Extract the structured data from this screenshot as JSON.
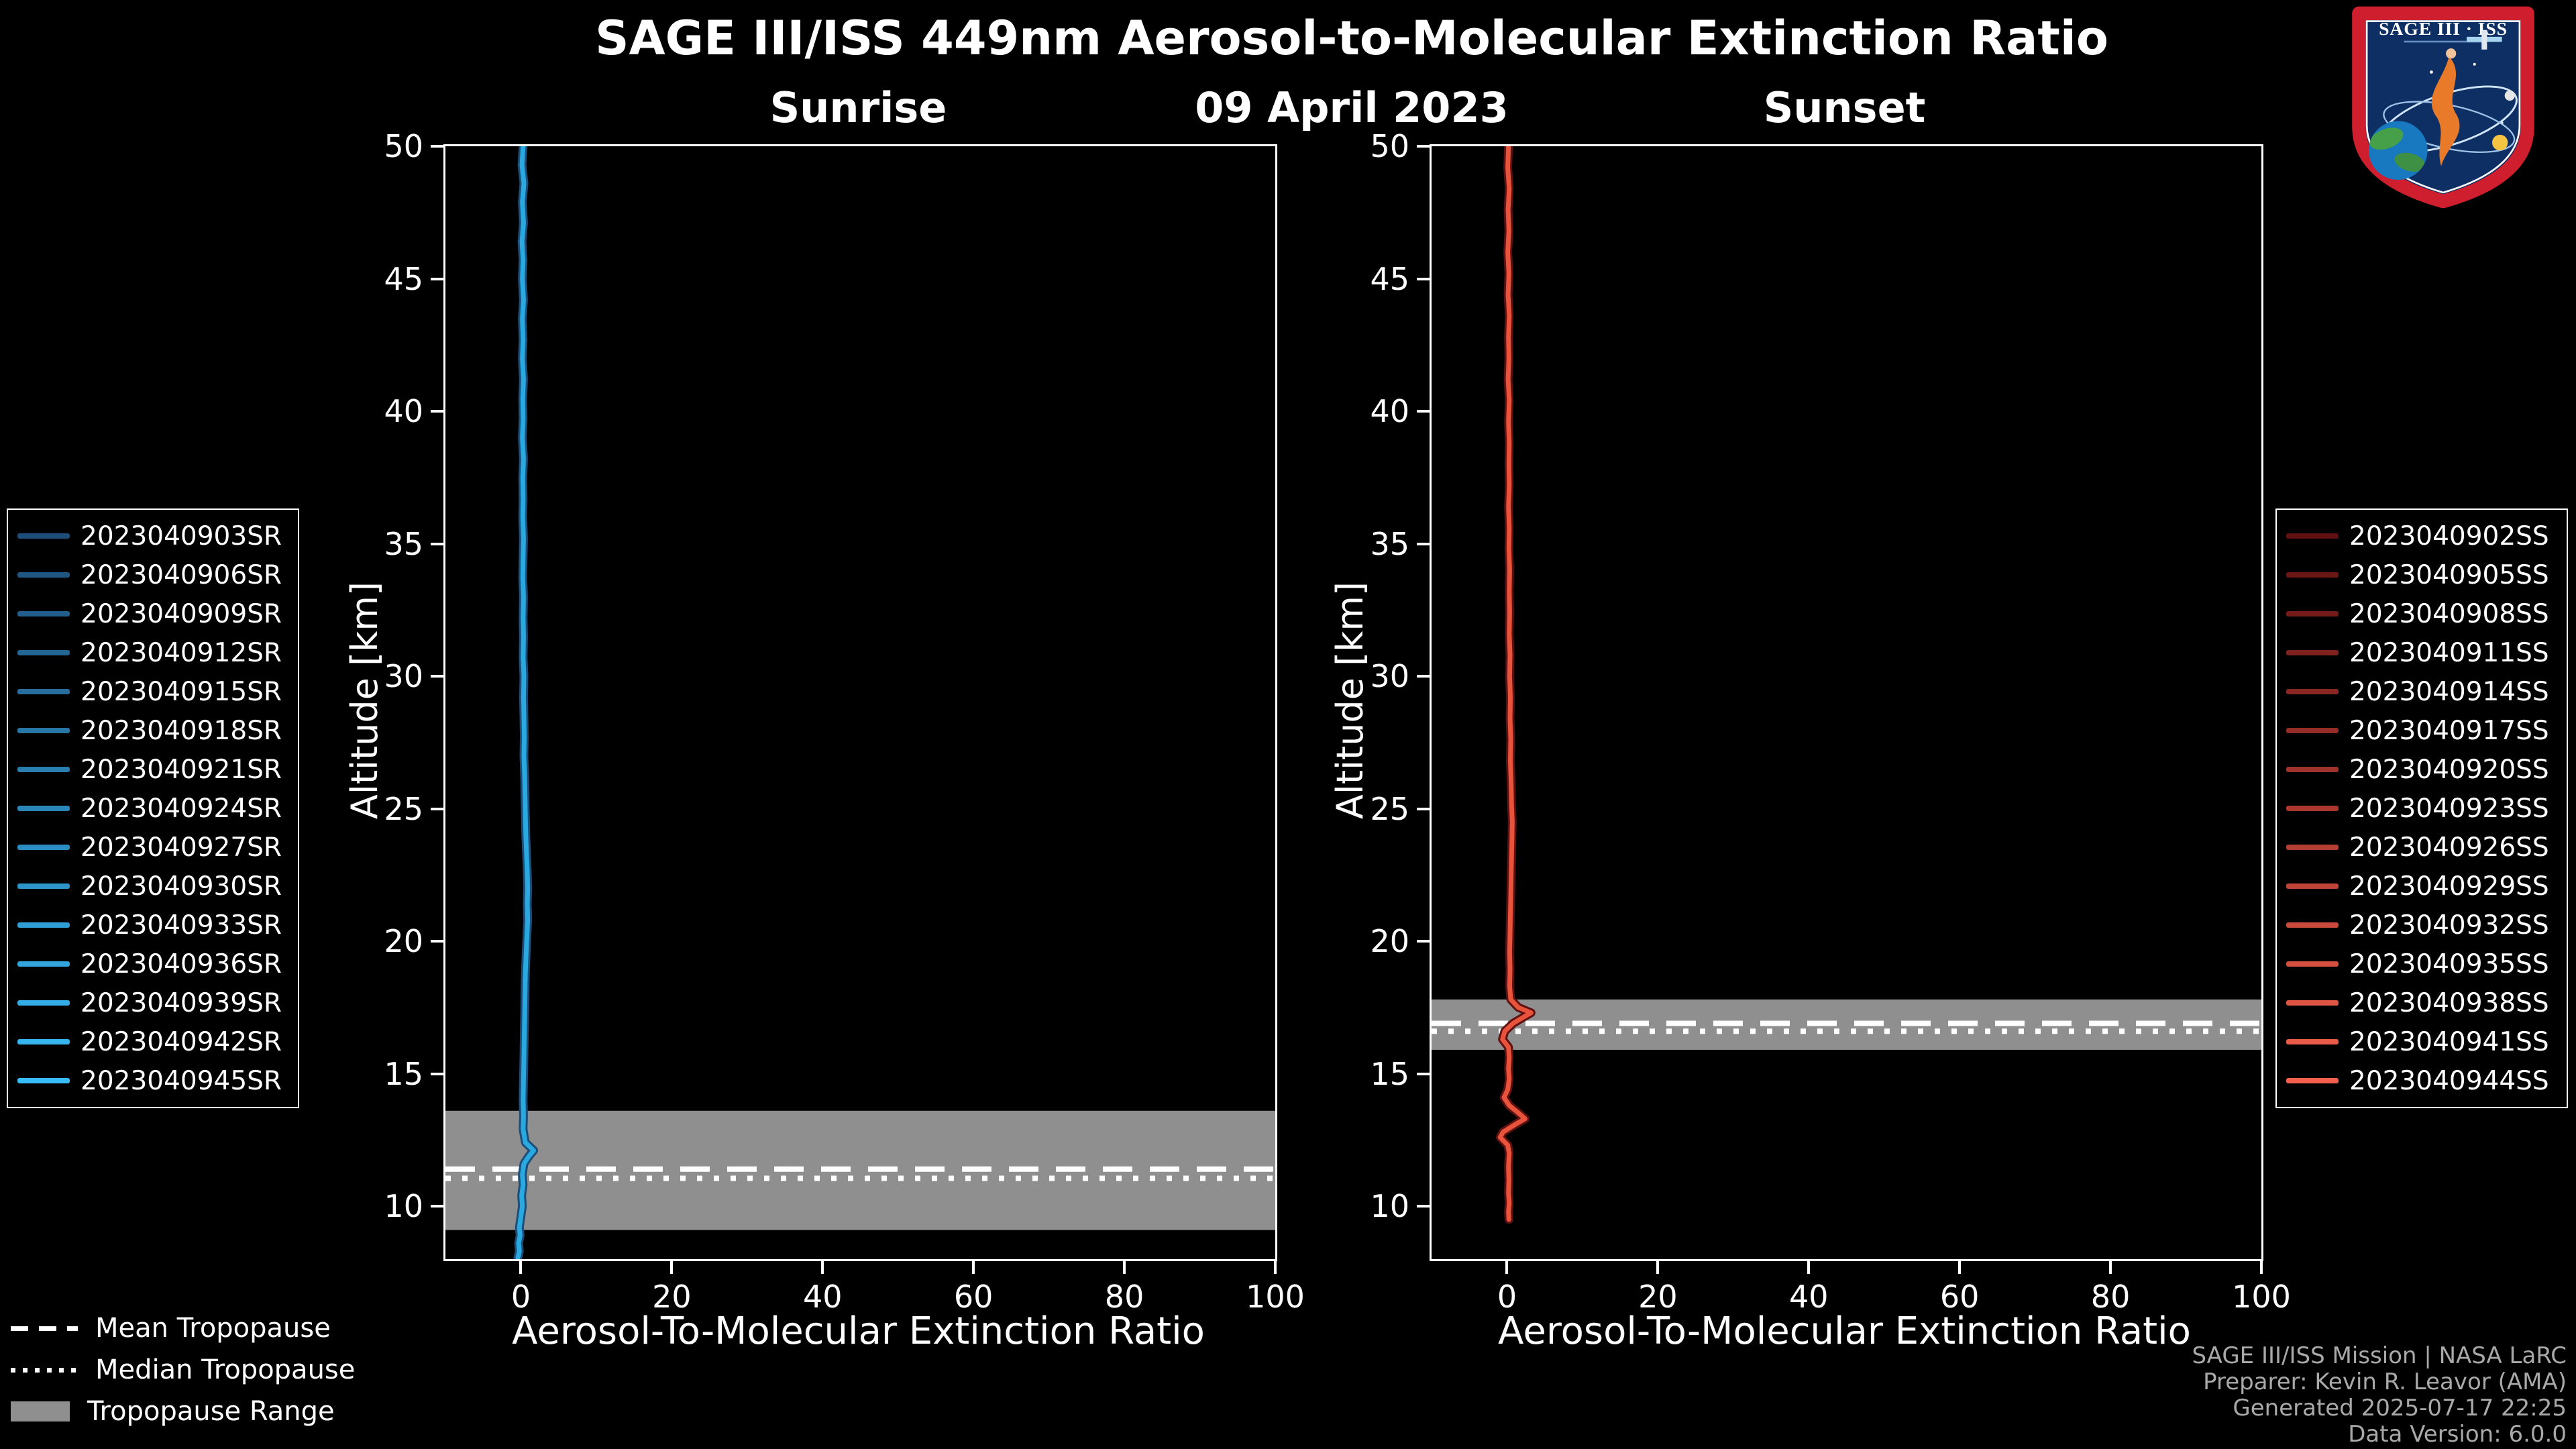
{
  "header": {
    "title": "SAGE III/ISS 449nm Aerosol-to-Molecular Extinction Ratio",
    "date": "09 April 2023"
  },
  "logo": {
    "text": "SAGE III · ISS"
  },
  "chart_data": [
    {
      "type": "line",
      "panel": "sunrise",
      "title": "Sunrise",
      "xlabel": "Aerosol-To-Molecular Extinction Ratio",
      "ylabel": "Altitude [km]",
      "xlim": [
        -10,
        100
      ],
      "ylim": [
        8,
        50
      ],
      "xticks": [
        0,
        20,
        40,
        60,
        80,
        100
      ],
      "yticks": [
        10,
        15,
        20,
        25,
        30,
        35,
        40,
        45,
        50
      ],
      "grid": false,
      "line_color": "#2aa9e0",
      "legend_color_start": "#1d4e79",
      "legend_color_end": "#38bdf8",
      "band_color": "#8f8f8f",
      "series_labels": [
        "2023040903SR",
        "2023040906SR",
        "2023040909SR",
        "2023040912SR",
        "2023040915SR",
        "2023040918SR",
        "2023040921SR",
        "2023040924SR",
        "2023040927SR",
        "2023040930SR",
        "2023040933SR",
        "2023040936SR",
        "2023040939SR",
        "2023040942SR",
        "2023040945SR"
      ],
      "tropopause": {
        "mean_km": 11.4,
        "median_km": 11.05,
        "range_km": [
          9.1,
          13.6
        ]
      },
      "profile": {
        "note": "mean aerosol-to-molecular extinction ratio profile; ratio vs altitude km",
        "points": [
          [
            0.3,
            50
          ],
          [
            0.15,
            49.3
          ],
          [
            0.4,
            48.6
          ],
          [
            0.2,
            47.9
          ],
          [
            0.35,
            47.1
          ],
          [
            0.15,
            46.4
          ],
          [
            0.3,
            45.7
          ],
          [
            0.2,
            45
          ],
          [
            0.35,
            44.2
          ],
          [
            0.2,
            43.5
          ],
          [
            0.3,
            42.7
          ],
          [
            0.2,
            42
          ],
          [
            0.35,
            41.2
          ],
          [
            0.25,
            40.5
          ],
          [
            0.3,
            39.7
          ],
          [
            0.2,
            39
          ],
          [
            0.35,
            38.2
          ],
          [
            0.25,
            37.5
          ],
          [
            0.3,
            36.7
          ],
          [
            0.25,
            36
          ],
          [
            0.35,
            35.2
          ],
          [
            0.3,
            34.5
          ],
          [
            0.25,
            33.7
          ],
          [
            0.35,
            33
          ],
          [
            0.3,
            32.2
          ],
          [
            0.35,
            31.5
          ],
          [
            0.3,
            30.7
          ],
          [
            0.4,
            30
          ],
          [
            0.35,
            29.2
          ],
          [
            0.4,
            28.5
          ],
          [
            0.45,
            27.7
          ],
          [
            0.4,
            27
          ],
          [
            0.5,
            26.2
          ],
          [
            0.55,
            25.5
          ],
          [
            0.6,
            24.7
          ],
          [
            0.65,
            24
          ],
          [
            0.75,
            23.3
          ],
          [
            0.85,
            22.6
          ],
          [
            0.9,
            22
          ],
          [
            0.85,
            21.4
          ],
          [
            0.9,
            20.8
          ],
          [
            0.8,
            20.2
          ],
          [
            0.7,
            19.5
          ],
          [
            0.6,
            18.8
          ],
          [
            0.55,
            18
          ],
          [
            0.5,
            17.2
          ],
          [
            0.45,
            16.4
          ],
          [
            0.4,
            15.6
          ],
          [
            0.35,
            14.8
          ],
          [
            0.3,
            14
          ],
          [
            0.35,
            13.4
          ],
          [
            0.3,
            12.9
          ],
          [
            0.6,
            12.4
          ],
          [
            1.7,
            12.1
          ],
          [
            1.1,
            11.9
          ],
          [
            0.4,
            11.6
          ],
          [
            0.2,
            11.2
          ],
          [
            0.3,
            10.8
          ],
          [
            0.1,
            10.4
          ],
          [
            0.2,
            10
          ],
          [
            0,
            9.6
          ],
          [
            -0.2,
            9.2
          ],
          [
            -0.1,
            8.9
          ],
          [
            -0.3,
            8.6
          ],
          [
            -0.2,
            8.3
          ],
          [
            -0.4,
            8.05
          ]
        ]
      }
    },
    {
      "type": "line",
      "panel": "sunset",
      "title": "Sunset",
      "xlabel": "Aerosol-To-Molecular Extinction Ratio",
      "ylabel": "Altitude [km]",
      "xlim": [
        -10,
        100
      ],
      "ylim": [
        8,
        50
      ],
      "xticks": [
        0,
        20,
        40,
        60,
        80,
        100
      ],
      "yticks": [
        10,
        15,
        20,
        25,
        30,
        35,
        40,
        45,
        50
      ],
      "grid": false,
      "line_color": "#e8533c",
      "legend_color_start": "#5f1010",
      "legend_color_end": "#f4604d",
      "band_color": "#8f8f8f",
      "series_labels": [
        "2023040902SS",
        "2023040905SS",
        "2023040908SS",
        "2023040911SS",
        "2023040914SS",
        "2023040917SS",
        "2023040920SS",
        "2023040923SS",
        "2023040926SS",
        "2023040929SS",
        "2023040932SS",
        "2023040935SS",
        "2023040938SS",
        "2023040941SS",
        "2023040944SS"
      ],
      "tropopause": {
        "mean_km": 16.9,
        "median_km": 16.6,
        "range_km": [
          15.9,
          17.8
        ]
      },
      "profile": {
        "note": "mean aerosol-to-molecular extinction ratio profile; ratio vs altitude km",
        "points": [
          [
            0.2,
            50
          ],
          [
            0.1,
            49.2
          ],
          [
            0.3,
            48.4
          ],
          [
            0.15,
            47.6
          ],
          [
            0.25,
            46.8
          ],
          [
            0.1,
            46
          ],
          [
            0.25,
            45.2
          ],
          [
            0.15,
            44.4
          ],
          [
            0.3,
            43.6
          ],
          [
            0.2,
            42.8
          ],
          [
            0.25,
            42
          ],
          [
            0.15,
            41.2
          ],
          [
            0.3,
            40.4
          ],
          [
            0.2,
            39.6
          ],
          [
            0.3,
            38.8
          ],
          [
            0.25,
            38
          ],
          [
            0.3,
            37.2
          ],
          [
            0.2,
            36.4
          ],
          [
            0.3,
            35.6
          ],
          [
            0.25,
            34.8
          ],
          [
            0.35,
            34
          ],
          [
            0.3,
            33.2
          ],
          [
            0.35,
            32.4
          ],
          [
            0.3,
            31.6
          ],
          [
            0.4,
            30.8
          ],
          [
            0.35,
            30
          ],
          [
            0.45,
            29.2
          ],
          [
            0.4,
            28.4
          ],
          [
            0.5,
            27.6
          ],
          [
            0.45,
            26.8
          ],
          [
            0.55,
            26
          ],
          [
            0.6,
            25.2
          ],
          [
            0.7,
            24.5
          ],
          [
            0.65,
            23.8
          ],
          [
            0.6,
            23.1
          ],
          [
            0.55,
            22.4
          ],
          [
            0.5,
            21.7
          ],
          [
            0.45,
            21
          ],
          [
            0.4,
            20.3
          ],
          [
            0.35,
            19.6
          ],
          [
            0.4,
            18.9
          ],
          [
            0.35,
            18.3
          ],
          [
            0.5,
            17.8
          ],
          [
            1.5,
            17.5
          ],
          [
            3.2,
            17.3
          ],
          [
            2.0,
            17.1
          ],
          [
            0.8,
            16.9
          ],
          [
            -0.3,
            16.6
          ],
          [
            -0.6,
            16.3
          ],
          [
            0.2,
            16
          ],
          [
            0.3,
            15.6
          ],
          [
            0.2,
            15.2
          ],
          [
            0.3,
            14.8
          ],
          [
            0.1,
            14.4
          ],
          [
            -0.4,
            14.1
          ],
          [
            0.3,
            13.8
          ],
          [
            1.6,
            13.5
          ],
          [
            2.4,
            13.3
          ],
          [
            1.2,
            13.1
          ],
          [
            -0.5,
            12.8
          ],
          [
            -0.9,
            12.6
          ],
          [
            0.1,
            12.3
          ],
          [
            0.3,
            12
          ],
          [
            0.2,
            11.5
          ],
          [
            0.25,
            11
          ],
          [
            0.2,
            10.5
          ],
          [
            0.3,
            10.1
          ],
          [
            0.2,
            9.8
          ],
          [
            0.25,
            9.5
          ]
        ]
      }
    }
  ],
  "tropopause_legend": {
    "items": [
      {
        "label": "Mean Tropopause",
        "style": "dashed"
      },
      {
        "label": "Median Tropopause",
        "style": "dotted"
      },
      {
        "label": "Tropopause Range",
        "style": "band"
      }
    ]
  },
  "footer": {
    "lines": [
      "SAGE III/ISS Mission | NASA LaRC",
      "Preparer: Kevin R. Leavor (AMA)",
      "Generated 2025-07-17 22:25",
      "Data Version: 6.0.0"
    ]
  }
}
